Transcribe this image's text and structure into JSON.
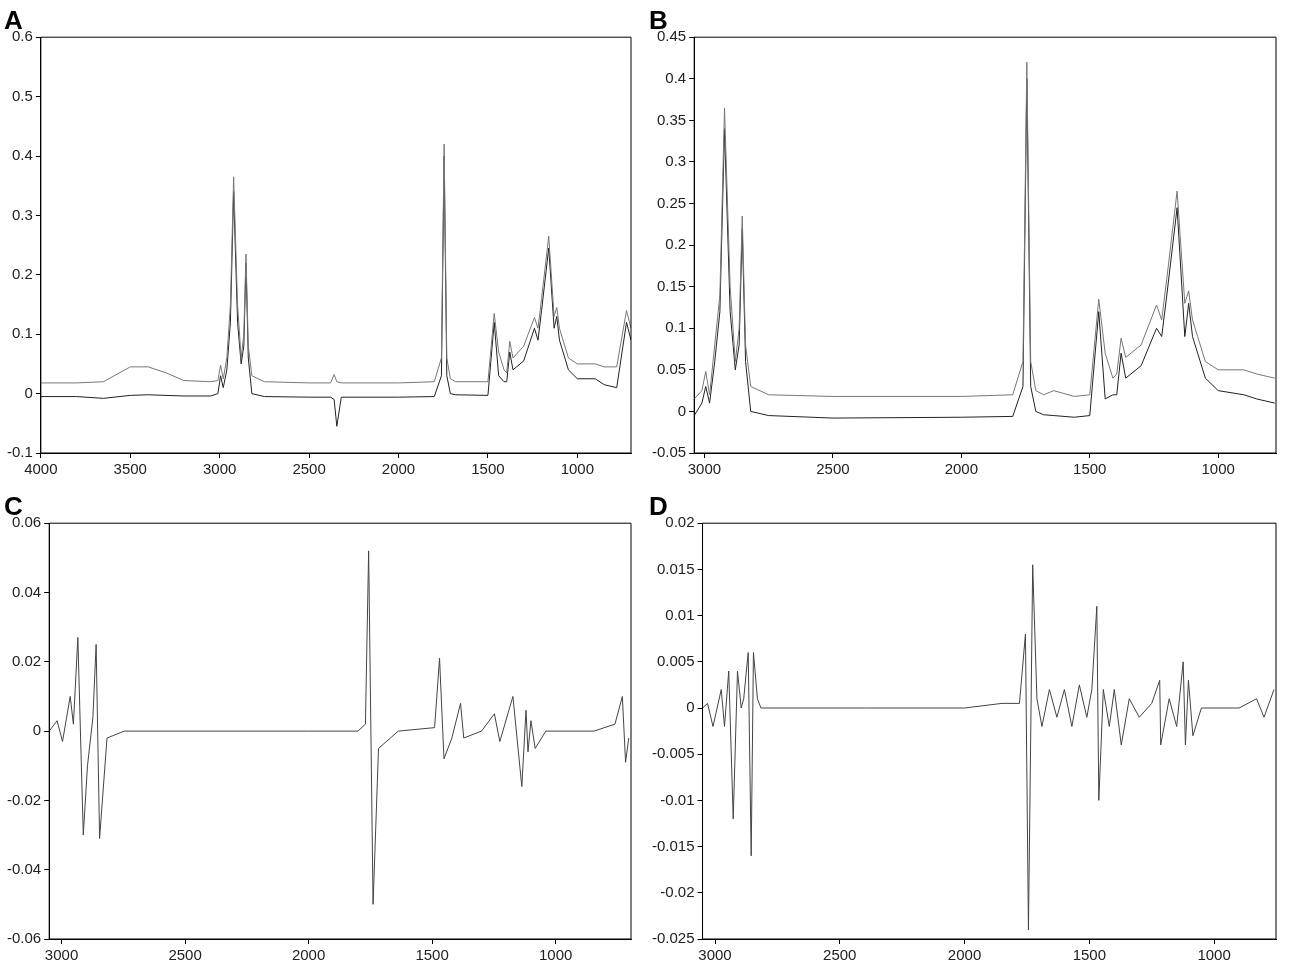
{
  "chart_data": [
    {
      "type": "line",
      "title": "A",
      "xlim": [
        4000,
        700
      ],
      "xticks": [
        4000,
        3500,
        3000,
        2500,
        2000,
        1500,
        1000
      ],
      "ylim": [
        -0.1,
        0.6
      ],
      "yticks": [
        -0.1,
        0,
        0.1,
        0.2,
        0.3,
        0.4,
        0.5,
        0.6
      ],
      "grid": false,
      "legend": false,
      "marker": "none",
      "line_style": "solid",
      "x": [
        4000,
        3800,
        3650,
        3500,
        3400,
        3300,
        3200,
        3050,
        3010,
        2995,
        2980,
        2960,
        2940,
        2922,
        2900,
        2880,
        2865,
        2853,
        2840,
        2820,
        2750,
        2500,
        2380,
        2360,
        2345,
        2320,
        2000,
        1800,
        1760,
        1745,
        1730,
        1710,
        1680,
        1500,
        1465,
        1440,
        1410,
        1395,
        1378,
        1360,
        1300,
        1240,
        1220,
        1200,
        1160,
        1130,
        1115,
        1100,
        1080,
        1050,
        1000,
        900,
        850,
        780,
        725,
        700
      ],
      "series": [
        {
          "color": "#777777",
          "values": [
            0.018,
            0.018,
            0.02,
            0.045,
            0.045,
            0.035,
            0.022,
            0.02,
            0.022,
            0.048,
            0.025,
            0.06,
            0.15,
            0.365,
            0.15,
            0.06,
            0.1,
            0.235,
            0.08,
            0.03,
            0.02,
            0.018,
            0.018,
            0.032,
            0.02,
            0.018,
            0.018,
            0.02,
            0.06,
            0.42,
            0.06,
            0.025,
            0.02,
            0.02,
            0.135,
            0.07,
            0.04,
            0.035,
            0.088,
            0.06,
            0.08,
            0.128,
            0.11,
            0.16,
            0.265,
            0.13,
            0.145,
            0.11,
            0.09,
            0.06,
            0.05,
            0.05,
            0.045,
            0.045,
            0.14,
            0.11
          ]
        },
        {
          "color": "#222222",
          "values": [
            -0.005,
            -0.005,
            -0.008,
            -0.003,
            -0.002,
            -0.003,
            -0.004,
            -0.004,
            0,
            0.03,
            0.01,
            0.04,
            0.12,
            0.34,
            0.12,
            0.05,
            0.08,
            0.22,
            0.06,
            0,
            -0.005,
            -0.006,
            -0.006,
            -0.01,
            -0.055,
            -0.006,
            -0.006,
            -0.005,
            0.03,
            0.4,
            0.03,
            0,
            -0.002,
            -0.003,
            0.12,
            0.03,
            0.02,
            0.02,
            0.07,
            0.04,
            0.055,
            0.11,
            0.09,
            0.14,
            0.245,
            0.11,
            0.13,
            0.09,
            0.07,
            0.04,
            0.025,
            0.025,
            0.015,
            0.01,
            0.12,
            0.09
          ]
        }
      ]
    },
    {
      "type": "line",
      "title": "B",
      "xlim": [
        3040,
        775
      ],
      "xticks": [
        3000,
        2500,
        2000,
        1500,
        1000
      ],
      "ylim": [
        -0.05,
        0.45
      ],
      "yticks": [
        -0.05,
        0,
        0.05,
        0.1,
        0.15,
        0.2,
        0.25,
        0.3,
        0.35,
        0.4,
        0.45
      ],
      "grid": false,
      "legend": false,
      "marker": "none",
      "line_style": "solid",
      "x": [
        3040,
        3010,
        2995,
        2980,
        2960,
        2940,
        2922,
        2900,
        2880,
        2865,
        2853,
        2840,
        2820,
        2750,
        2500,
        2000,
        1800,
        1760,
        1745,
        1730,
        1710,
        1680,
        1640,
        1560,
        1500,
        1465,
        1440,
        1410,
        1395,
        1378,
        1360,
        1300,
        1240,
        1220,
        1200,
        1160,
        1130,
        1115,
        1100,
        1080,
        1050,
        1000,
        900,
        850,
        780
      ],
      "series": [
        {
          "color": "#777777",
          "values": [
            0.015,
            0.025,
            0.048,
            0.02,
            0.08,
            0.14,
            0.365,
            0.15,
            0.06,
            0.1,
            0.235,
            0.08,
            0.03,
            0.02,
            0.018,
            0.018,
            0.02,
            0.06,
            0.42,
            0.06,
            0.025,
            0.02,
            0.025,
            0.018,
            0.02,
            0.135,
            0.07,
            0.04,
            0.045,
            0.088,
            0.065,
            0.08,
            0.128,
            0.11,
            0.16,
            0.265,
            0.13,
            0.145,
            0.11,
            0.09,
            0.06,
            0.05,
            0.05,
            0.045,
            0.04
          ]
        },
        {
          "color": "#222222",
          "values": [
            -0.005,
            0.01,
            0.03,
            0.01,
            0.06,
            0.12,
            0.34,
            0.12,
            0.05,
            0.08,
            0.22,
            0.06,
            0,
            -0.005,
            -0.008,
            -0.007,
            -0.006,
            0.03,
            0.4,
            0.03,
            0,
            -0.004,
            -0.005,
            -0.007,
            -0.005,
            0.12,
            0.015,
            0.02,
            0.02,
            0.07,
            0.04,
            0.055,
            0.1,
            0.09,
            0.14,
            0.245,
            0.09,
            0.13,
            0.09,
            0.07,
            0.04,
            0.025,
            0.02,
            0.015,
            0.01
          ]
        }
      ]
    },
    {
      "type": "line",
      "title": "C",
      "xlim": [
        3050,
        695
      ],
      "xticks": [
        3000,
        2500,
        2000,
        1500,
        1000
      ],
      "ylim": [
        -0.06,
        0.06
      ],
      "yticks": [
        -0.06,
        -0.04,
        -0.02,
        0,
        0.02,
        0.04,
        0.06
      ],
      "grid": false,
      "legend": false,
      "marker": "none",
      "line_style": "solid",
      "x": [
        3050,
        3018,
        2996,
        2965,
        2952,
        2934,
        2912,
        2895,
        2873,
        2860,
        2846,
        2816,
        2746,
        2000,
        1800,
        1770,
        1757,
        1739,
        1717,
        1637,
        1490,
        1470,
        1452,
        1420,
        1385,
        1372,
        1300,
        1248,
        1226,
        1173,
        1137,
        1120,
        1112,
        1100,
        1083,
        1040,
        845,
        760,
        730,
        717,
        704
      ],
      "series": [
        {
          "color": "#444444",
          "values": [
            0,
            0.003,
            -0.003,
            0.01,
            0.002,
            0.027,
            -0.03,
            -0.01,
            0.004,
            0.025,
            -0.031,
            -0.002,
            0,
            0,
            0,
            0.002,
            0.052,
            -0.05,
            -0.005,
            0,
            0.001,
            0.021,
            -0.008,
            -0.002,
            0.008,
            -0.002,
            0,
            0.005,
            -0.003,
            0.01,
            -0.016,
            0.006,
            -0.006,
            0.003,
            -0.005,
            0,
            0,
            0.002,
            0.01,
            -0.009,
            -0.002
          ]
        }
      ]
    },
    {
      "type": "line",
      "title": "D",
      "xlim": [
        3050,
        752
      ],
      "xticks": [
        3000,
        2500,
        2000,
        1500,
        1000
      ],
      "ylim": [
        -0.025,
        0.02
      ],
      "yticks": [
        -0.025,
        -0.02,
        -0.015,
        -0.01,
        -0.005,
        0,
        0.005,
        0.01,
        0.015,
        0.02
      ],
      "grid": false,
      "legend": false,
      "marker": "none",
      "line_style": "solid",
      "x": [
        3050,
        3030,
        3008,
        2975,
        2962,
        2945,
        2927,
        2910,
        2895,
        2885,
        2867,
        2855,
        2846,
        2830,
        2816,
        2400,
        2000,
        1850,
        1780,
        1756,
        1744,
        1727,
        1710,
        1690,
        1660,
        1630,
        1600,
        1570,
        1540,
        1510,
        1490,
        1470,
        1462,
        1444,
        1420,
        1400,
        1372,
        1340,
        1300,
        1250,
        1218,
        1214,
        1180,
        1150,
        1124,
        1115,
        1103,
        1085,
        1051,
        900,
        830,
        800,
        760
      ],
      "series": [
        {
          "color": "#444444",
          "values": [
            0,
            0.0005,
            -0.002,
            0.002,
            -0.002,
            0.004,
            -0.012,
            0.004,
            0,
            0.001,
            0.006,
            -0.016,
            0.006,
            0.001,
            0,
            0,
            0,
            0.0005,
            0.0005,
            0.008,
            -0.024,
            0.0155,
            0.001,
            -0.002,
            0.002,
            -0.001,
            0.002,
            -0.002,
            0.0025,
            -0.001,
            0.002,
            0.011,
            -0.01,
            0.002,
            -0.002,
            0.002,
            -0.004,
            0.001,
            -0.001,
            0.0005,
            0.003,
            -0.004,
            0.001,
            -0.002,
            0.005,
            -0.004,
            0.003,
            -0.003,
            0,
            0,
            0.001,
            -0.001,
            0.002
          ]
        }
      ]
    }
  ]
}
